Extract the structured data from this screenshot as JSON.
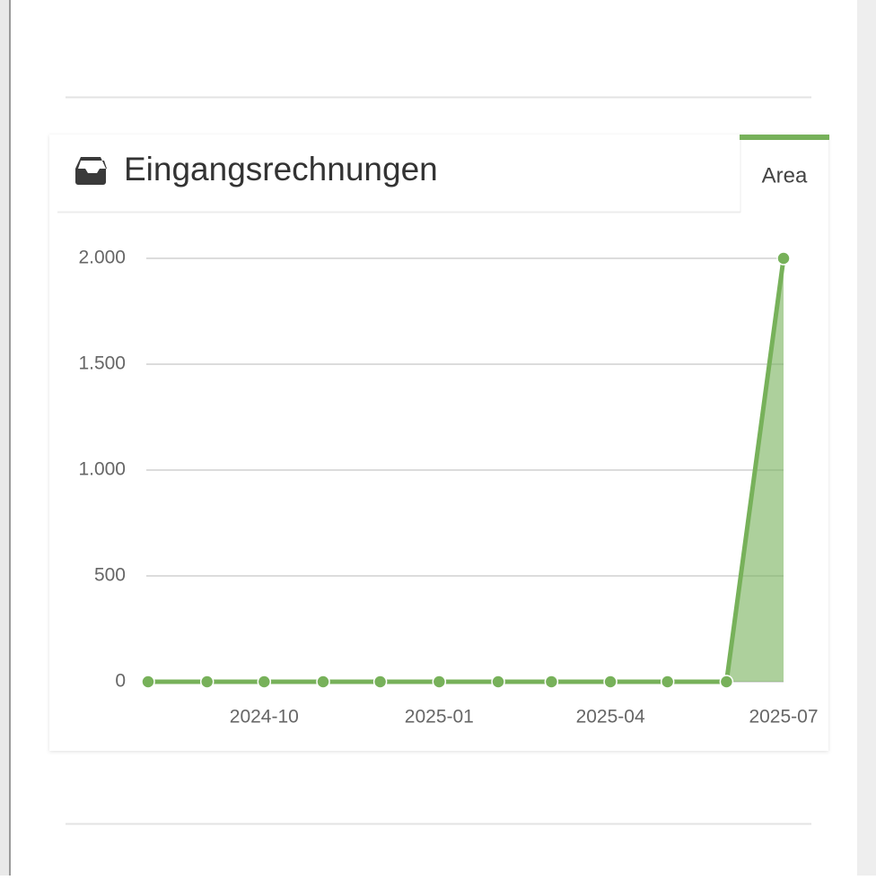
{
  "panel": {
    "title": "Eingangsrechnungen",
    "tab": "Area"
  },
  "chart_data": {
    "type": "area",
    "x": [
      "2024-08",
      "2024-09",
      "2024-10",
      "2024-11",
      "2024-12",
      "2025-01",
      "2025-02",
      "2025-03",
      "2025-04",
      "2025-05",
      "2025-06",
      "2025-07"
    ],
    "series": [
      {
        "color": "#77b15a",
        "values": [
          0,
          0,
          0,
          0,
          0,
          0,
          0,
          0,
          0,
          0,
          0,
          2000
        ]
      }
    ],
    "xlim": [
      "2024-08",
      "2025-07"
    ],
    "xticks": [
      "2024-10",
      "2025-01",
      "2025-04",
      "2025-07"
    ],
    "ylim": [
      0,
      2000
    ],
    "yticks": [
      0,
      500,
      {
        "value": 1000,
        "label": "1.000"
      },
      {
        "value": 1500,
        "label": "1.500"
      },
      {
        "value": 2000,
        "label": "2.000"
      }
    ],
    "grid": true
  }
}
